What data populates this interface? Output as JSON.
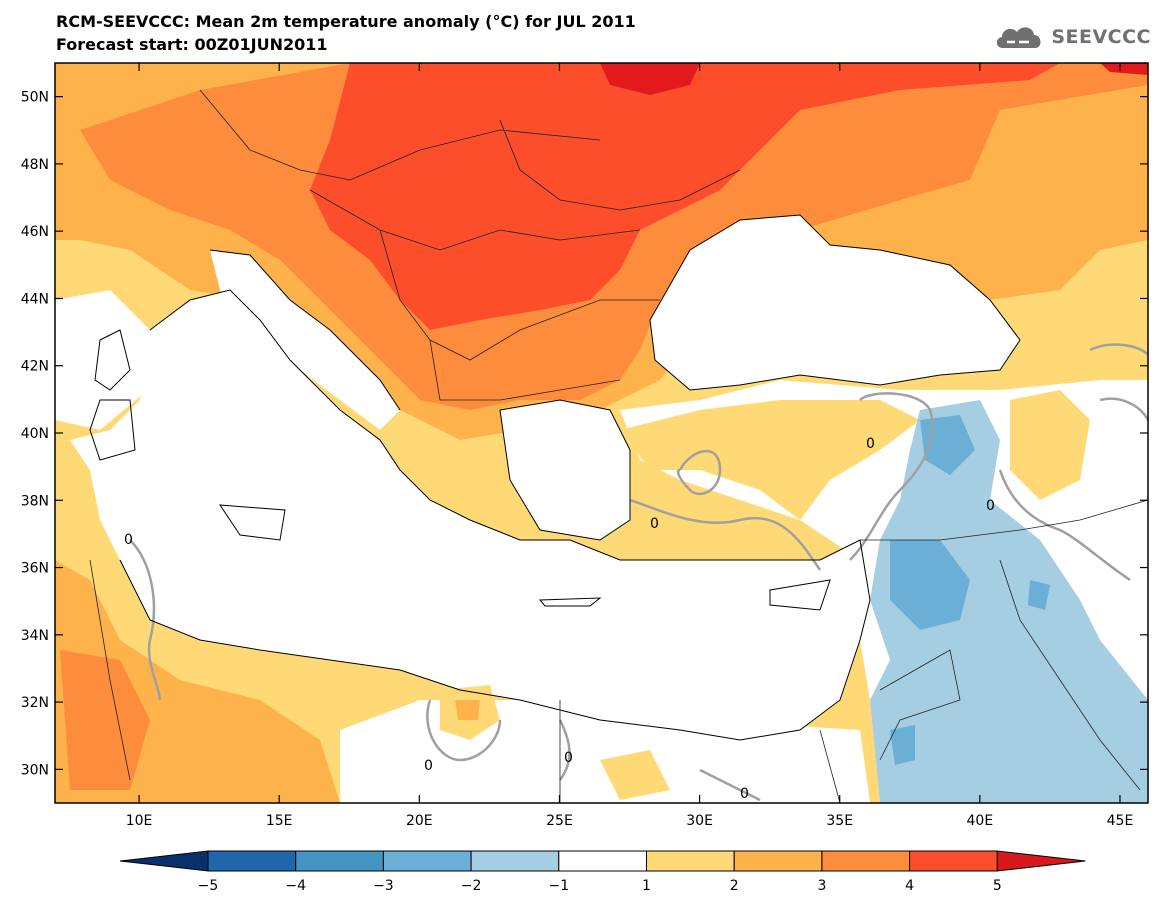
{
  "header": {
    "title": "RCM-SEEVCCC: Mean 2m temperature anomaly (°C) for JUL 2011",
    "subtitle": "Forecast start: 00Z01JUN2011"
  },
  "logo": {
    "text": "SEEVCCC",
    "icon": "cloud-logo-icon"
  },
  "map": {
    "lon_range": [
      7,
      46
    ],
    "lat_range": [
      29,
      51
    ],
    "lat_ticks": [
      {
        "value": 50,
        "label": "50N"
      },
      {
        "value": 48,
        "label": "48N"
      },
      {
        "value": 46,
        "label": "46N"
      },
      {
        "value": 44,
        "label": "44N"
      },
      {
        "value": 42,
        "label": "42N"
      },
      {
        "value": 40,
        "label": "40N"
      },
      {
        "value": 38,
        "label": "38N"
      },
      {
        "value": 36,
        "label": "36N"
      },
      {
        "value": 34,
        "label": "34N"
      },
      {
        "value": 32,
        "label": "32N"
      },
      {
        "value": 30,
        "label": "30N"
      }
    ],
    "lon_ticks": [
      {
        "value": 10,
        "label": "10E"
      },
      {
        "value": 15,
        "label": "15E"
      },
      {
        "value": 20,
        "label": "20E"
      },
      {
        "value": 25,
        "label": "25E"
      },
      {
        "value": 30,
        "label": "30E"
      },
      {
        "value": 35,
        "label": "35E"
      },
      {
        "value": 40,
        "label": "40E"
      },
      {
        "value": 45,
        "label": "45E"
      }
    ],
    "contour_label": "0"
  },
  "colorbar": {
    "labels": [
      "-5",
      "-4",
      "-3",
      "-2",
      "-1",
      "1",
      "2",
      "3",
      "4",
      "5"
    ],
    "colors": [
      "#2166ac",
      "#4393c3",
      "#6baed6",
      "#a6cee3",
      "#ffffff",
      "#fed976",
      "#feb24c",
      "#fd8d3c",
      "#fc4e2a"
    ],
    "low_extend_color": "#08306b",
    "high_extend_color": "#d7191c"
  },
  "palette": {
    "a1": "#fed976",
    "a2": "#feb24c",
    "a3": "#fd8d3c",
    "a4": "#fc4e2a",
    "a5": "#e31a1c",
    "n1": "#a6cee3",
    "n2": "#6baed6"
  }
}
